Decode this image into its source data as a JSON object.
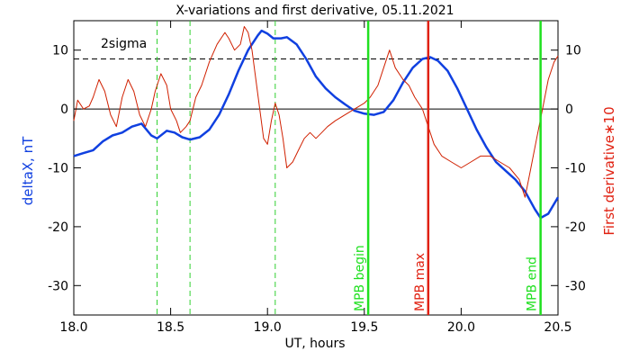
{
  "chart_data": {
    "type": "line",
    "title": "X-variations and first derivative, 05.11.2021",
    "xlabel": "UT, hours",
    "ylabel_left": "deltaX, nT",
    "ylabel_right": "First derivative∗10",
    "xlim": [
      18.0,
      20.5
    ],
    "ylim": [
      -35,
      15
    ],
    "x_ticks": [
      18.0,
      18.5,
      19.0,
      19.5,
      20.0,
      20.5
    ],
    "x_tick_labels": [
      "18.0",
      "18.5",
      "19.0",
      "19.5",
      "20.0",
      "20.5"
    ],
    "y_ticks": [
      -30,
      -20,
      -10,
      0,
      10
    ],
    "y_tick_labels": [
      "-30",
      "-20",
      "-10",
      "0",
      "10"
    ],
    "grid": false,
    "colors": {
      "deltaX": "#1040e0",
      "derivative": "#d02000",
      "mpb_lines": "#20e020",
      "mpb_max": "#e02010",
      "green_dashed": "#30d030",
      "axis": "#000000"
    },
    "reference_lines": {
      "zero": 0,
      "two_sigma": 8.5,
      "two_sigma_label": "2sigma"
    },
    "green_dashed_x": [
      18.43,
      18.6,
      19.04
    ],
    "markers": [
      {
        "label": "MPB begin",
        "x": 19.52,
        "color": "#20e020"
      },
      {
        "label": "MPB max",
        "x": 19.83,
        "color": "#e02010"
      },
      {
        "label": "MPB end",
        "x": 20.41,
        "color": "#20e020"
      }
    ],
    "series": [
      {
        "key": "deltaX",
        "color": "#1040e0",
        "axis": "left",
        "x": [
          18.0,
          18.05,
          18.1,
          18.15,
          18.2,
          18.25,
          18.3,
          18.35,
          18.4,
          18.43,
          18.48,
          18.52,
          18.56,
          18.6,
          18.65,
          18.7,
          18.75,
          18.8,
          18.85,
          18.9,
          18.95,
          18.97,
          19.0,
          19.03,
          19.07,
          19.1,
          19.15,
          19.2,
          19.25,
          19.3,
          19.35,
          19.4,
          19.45,
          19.5,
          19.55,
          19.6,
          19.65,
          19.7,
          19.75,
          19.8,
          19.84,
          19.88,
          19.93,
          19.98,
          20.03,
          20.08,
          20.13,
          20.18,
          20.23,
          20.28,
          20.33,
          20.38,
          20.41,
          20.45,
          20.5
        ],
        "y": [
          -8,
          -7.5,
          -7,
          -5.5,
          -4.5,
          -4,
          -3,
          -2.5,
          -4.5,
          -5,
          -3.7,
          -4,
          -4.8,
          -5.2,
          -4.8,
          -3.5,
          -1,
          2.5,
          6.5,
          10,
          12.5,
          13.3,
          12.8,
          12,
          12,
          12.2,
          11,
          8.5,
          5.5,
          3.5,
          2,
          0.8,
          -0.3,
          -0.8,
          -1,
          -0.5,
          1.5,
          4.5,
          7,
          8.5,
          8.8,
          8.2,
          6.5,
          3.5,
          0,
          -3.5,
          -6.5,
          -9,
          -10.5,
          -12,
          -14,
          -17,
          -18.5,
          -17.8,
          -15
        ]
      },
      {
        "key": "derivative",
        "color": "#d02000",
        "axis": "right",
        "x": [
          18.0,
          18.02,
          18.05,
          18.08,
          18.1,
          18.13,
          18.16,
          18.19,
          18.22,
          18.25,
          18.28,
          18.31,
          18.34,
          18.37,
          18.4,
          18.42,
          18.45,
          18.48,
          18.5,
          18.53,
          18.55,
          18.58,
          18.6,
          18.63,
          18.66,
          18.7,
          18.74,
          18.78,
          18.8,
          18.83,
          18.86,
          18.88,
          18.9,
          18.92,
          18.94,
          18.96,
          18.98,
          19.0,
          19.02,
          19.04,
          19.06,
          19.08,
          19.1,
          19.13,
          19.16,
          19.19,
          19.22,
          19.25,
          19.28,
          19.31,
          19.35,
          19.4,
          19.45,
          19.5,
          19.53,
          19.57,
          19.6,
          19.63,
          19.66,
          19.7,
          19.73,
          19.76,
          19.8,
          19.83,
          19.86,
          19.9,
          19.95,
          20.0,
          20.05,
          20.1,
          20.15,
          20.2,
          20.25,
          20.3,
          20.33,
          20.36,
          20.39,
          20.42,
          20.45,
          20.48,
          20.5
        ],
        "y": [
          -2,
          1.5,
          0,
          0.5,
          2,
          5,
          3,
          -1,
          -3,
          2,
          5,
          3,
          -1,
          -3,
          0,
          3,
          6,
          4,
          0,
          -2,
          -4,
          -3,
          -2,
          2,
          4,
          8,
          11,
          13,
          12,
          10,
          11,
          14,
          13,
          10,
          5,
          0,
          -5,
          -6,
          -2,
          1,
          -1,
          -5,
          -10,
          -9,
          -7,
          -5,
          -4,
          -5,
          -4,
          -3,
          -2,
          -1,
          0,
          1,
          2,
          4,
          7,
          10,
          7,
          5,
          4,
          2,
          0,
          -3,
          -6,
          -8,
          -9,
          -10,
          -9,
          -8,
          -8,
          -9,
          -10,
          -12,
          -15,
          -10,
          -5,
          0,
          5,
          8,
          9
        ]
      }
    ]
  }
}
